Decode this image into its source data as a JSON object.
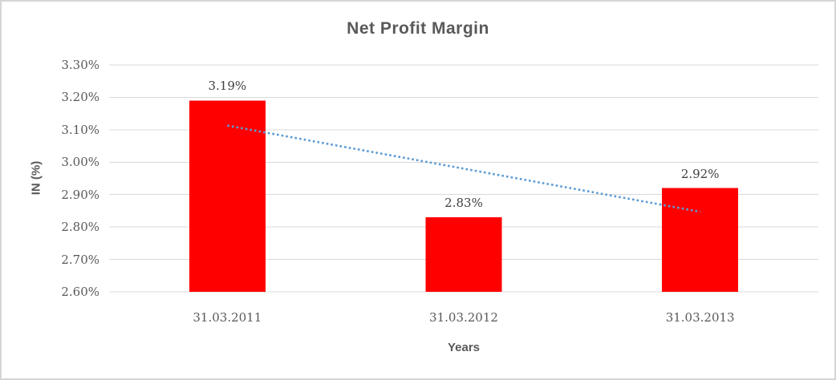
{
  "chart": {
    "title": "Net Profit Margin",
    "y_axis_title": "IN (%)",
    "x_axis_title": "Years"
  },
  "chart_data": {
    "type": "bar",
    "title": "Net Profit Margin",
    "xlabel": "Years",
    "ylabel": "IN (%)",
    "categories": [
      "31.03.2011",
      "31.03.2012",
      "31.03.2013"
    ],
    "values": [
      3.19,
      2.83,
      2.92
    ],
    "value_labels": [
      "3.19%",
      "2.83%",
      "2.92%"
    ],
    "ylim": [
      2.6,
      3.3
    ],
    "y_tick_step": 0.1,
    "y_tick_labels": [
      "2.60%",
      "2.70%",
      "2.80%",
      "2.90%",
      "3.00%",
      "3.10%",
      "3.20%",
      "3.30%"
    ],
    "grid": true,
    "legend": false,
    "trendline": {
      "type": "linear",
      "style": "dotted",
      "start_value": 3.113,
      "end_value": 2.847
    }
  },
  "colors": {
    "bar": "#ff0000",
    "trendline": "#5b9bd5",
    "gridline": "#d9d9d9",
    "title_text": "#595959",
    "axis_title_text": "#595959",
    "tick_text": "#595959",
    "data_label_text": "#3f3f3f",
    "chart_border": "#d5d5d5",
    "background": "#ffffff"
  }
}
